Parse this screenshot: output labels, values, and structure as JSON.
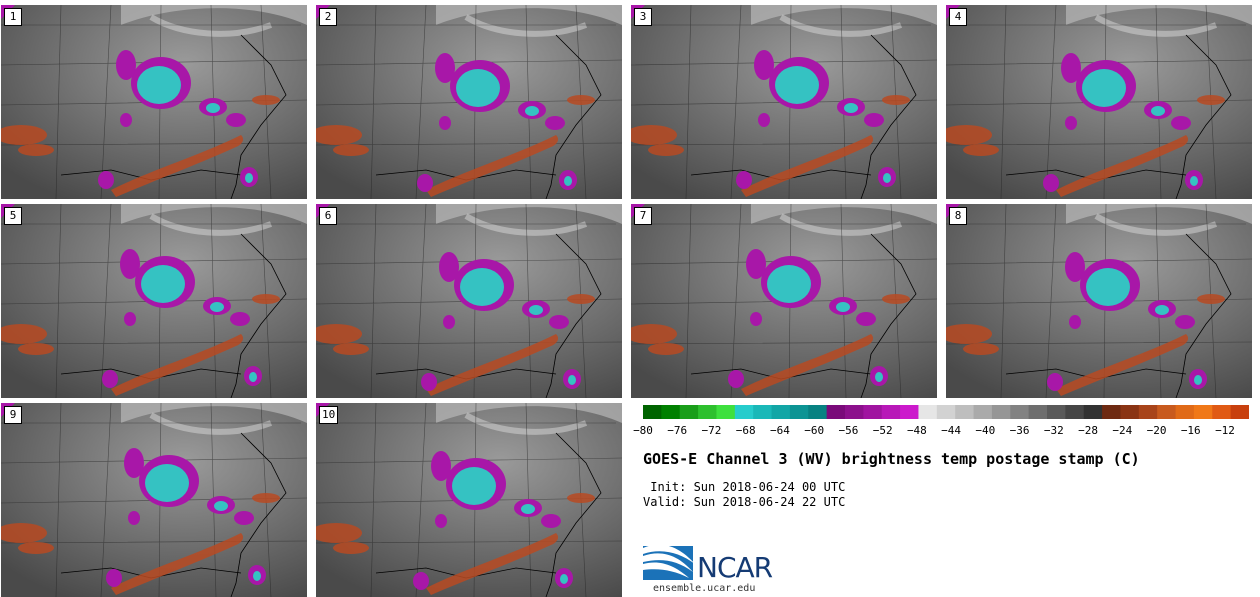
{
  "panels": [
    {
      "label": "1"
    },
    {
      "label": "2"
    },
    {
      "label": "3"
    },
    {
      "label": "4"
    },
    {
      "label": "5"
    },
    {
      "label": "6"
    },
    {
      "label": "7"
    },
    {
      "label": "8"
    },
    {
      "label": "9"
    },
    {
      "label": "10"
    }
  ],
  "colorbar": {
    "colors": [
      "#006400",
      "#008000",
      "#1a9e1a",
      "#2ec02e",
      "#3ee03e",
      "#26cccc",
      "#1ab8b8",
      "#12a6a6",
      "#0c9494",
      "#078282",
      "#7a0a7a",
      "#8c108c",
      "#a014a0",
      "#b818b8",
      "#cc1acc",
      "#e6e6e6",
      "#d2d2d2",
      "#bebebe",
      "#aaaaaa",
      "#969696",
      "#828282",
      "#6e6e6e",
      "#5a5a5a",
      "#464646",
      "#323232",
      "#6e2a12",
      "#8a3414",
      "#a8441a",
      "#c85a1e",
      "#e06a18",
      "#f07818",
      "#e05a14",
      "#c8400e"
    ],
    "ticks": [
      "−80",
      "−76",
      "−72",
      "−68",
      "−64",
      "−60",
      "−56",
      "−52",
      "−48",
      "−44",
      "−40",
      "−36",
      "−32",
      "−28",
      "−24",
      "−20",
      "−16",
      "−12"
    ]
  },
  "title": "GOES-E Channel 3 (WV) brightness temp postage stamp (C)",
  "init_line": " Init: Sun 2018-06-24 00 UTC",
  "valid_line": "Valid: Sun 2018-06-24 22 UTC",
  "logo": {
    "text": "NCAR",
    "url": "ensemble.ucar.edu",
    "icon": "ncar-logo-icon"
  }
}
